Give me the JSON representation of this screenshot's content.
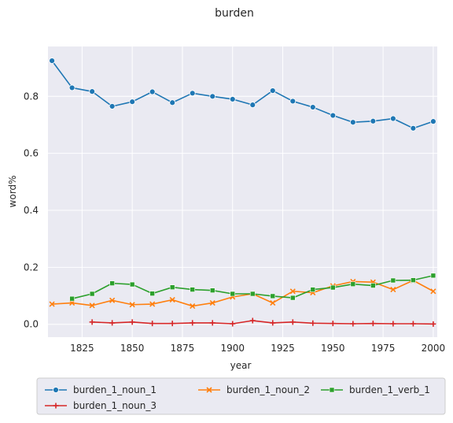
{
  "chart_data": {
    "type": "line",
    "title": "burden",
    "xlabel": "year",
    "ylabel": "word%",
    "xlim": [
      1808,
      2002
    ],
    "ylim": [
      -0.045,
      0.975
    ],
    "xticks": [
      1825,
      1850,
      1875,
      1900,
      1925,
      1950,
      1975,
      2000
    ],
    "yticks": [
      0.0,
      0.2,
      0.4,
      0.6,
      0.8
    ],
    "ytick_labels": [
      "0.0",
      "0.2",
      "0.4",
      "0.6",
      "0.8"
    ],
    "grid": true,
    "legend_position": "bottom",
    "series": [
      {
        "name": "burden_1_noun_1",
        "color": "#1f77b4",
        "marker": "circle",
        "x": [
          1810,
          1820,
          1830,
          1840,
          1850,
          1860,
          1870,
          1880,
          1890,
          1900,
          1910,
          1920,
          1930,
          1940,
          1950,
          1960,
          1970,
          1980,
          1990,
          2000
        ],
        "y": [
          0.925,
          0.83,
          0.817,
          0.765,
          0.781,
          0.816,
          0.778,
          0.811,
          0.8,
          0.79,
          0.77,
          0.82,
          0.783,
          0.762,
          0.733,
          0.709,
          0.713,
          0.722,
          0.688,
          0.712
        ]
      },
      {
        "name": "burden_1_noun_2",
        "color": "#ff7f0e",
        "marker": "x",
        "x": [
          1810,
          1820,
          1830,
          1840,
          1850,
          1860,
          1870,
          1880,
          1890,
          1900,
          1910,
          1920,
          1930,
          1940,
          1950,
          1960,
          1970,
          1980,
          1990,
          2000
        ],
        "y": [
          0.071,
          0.075,
          0.066,
          0.084,
          0.069,
          0.071,
          0.086,
          0.064,
          0.075,
          0.096,
          0.107,
          0.075,
          0.116,
          0.111,
          0.135,
          0.15,
          0.148,
          0.122,
          0.154,
          0.116
        ]
      },
      {
        "name": "burden_1_verb_1",
        "color": "#2ca02c",
        "marker": "square",
        "x": [
          1820,
          1830,
          1840,
          1850,
          1860,
          1870,
          1880,
          1890,
          1900,
          1910,
          1920,
          1930,
          1940,
          1950,
          1960,
          1970,
          1980,
          1990,
          2000
        ],
        "y": [
          0.09,
          0.107,
          0.144,
          0.14,
          0.108,
          0.13,
          0.122,
          0.119,
          0.107,
          0.107,
          0.099,
          0.093,
          0.122,
          0.129,
          0.141,
          0.136,
          0.154,
          0.155,
          0.171
        ]
      },
      {
        "name": "burden_1_noun_3",
        "color": "#d62728",
        "marker": "plus",
        "x": [
          1830,
          1840,
          1850,
          1860,
          1870,
          1880,
          1890,
          1900,
          1910,
          1920,
          1930,
          1940,
          1950,
          1960,
          1970,
          1980,
          1990,
          2000
        ],
        "y": [
          0.008,
          0.005,
          0.008,
          0.003,
          0.003,
          0.005,
          0.005,
          0.002,
          0.013,
          0.005,
          0.008,
          0.004,
          0.003,
          0.002,
          0.003,
          0.002,
          0.002,
          0.001
        ]
      }
    ]
  }
}
